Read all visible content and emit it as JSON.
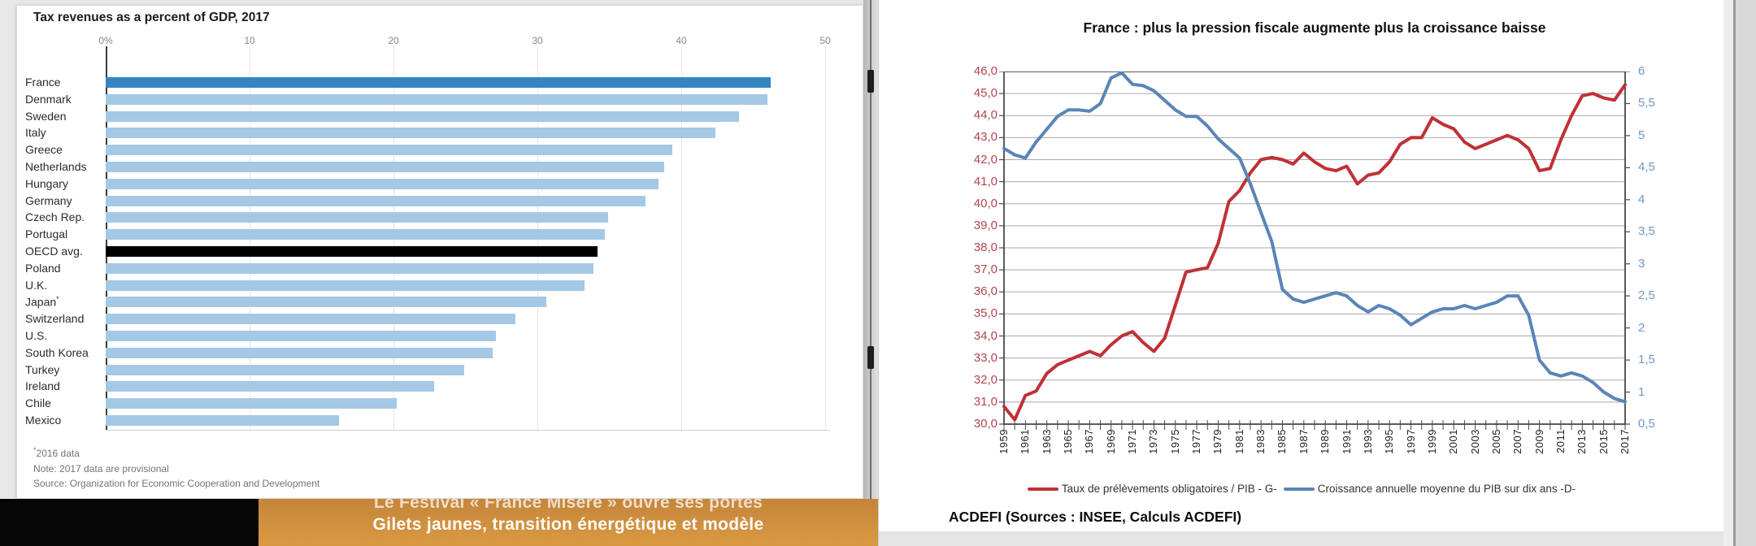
{
  "banner": {
    "line1": "Le Festival « France Misère » ouvre ses portes",
    "line2": "Gilets jaunes, transition énergétique et modèle"
  },
  "chart_data": [
    {
      "type": "bar",
      "orientation": "horizontal",
      "title": "Tax revenues as a percent of GDP, 2017",
      "x_ticks": [
        "0%",
        "10",
        "20",
        "30",
        "40",
        "50"
      ],
      "xlim": [
        0,
        50
      ],
      "grid": "vertical",
      "categories": [
        "France",
        "Denmark",
        "Sweden",
        "Italy",
        "Greece",
        "Netherlands",
        "Hungary",
        "Germany",
        "Czech Rep.",
        "Portugal",
        "OECD avg.",
        "Poland",
        "U.K.",
        "Japan*",
        "Switzerland",
        "U.S.",
        "South Korea",
        "Turkey",
        "Ireland",
        "Chile",
        "Mexico"
      ],
      "values": [
        46.2,
        46.0,
        44.0,
        42.4,
        39.4,
        38.8,
        38.4,
        37.5,
        34.9,
        34.7,
        34.2,
        33.9,
        33.3,
        30.6,
        28.5,
        27.1,
        26.9,
        24.9,
        22.8,
        20.2,
        16.2
      ],
      "bar_styles": [
        "highlight",
        "normal",
        "normal",
        "normal",
        "normal",
        "normal",
        "normal",
        "normal",
        "normal",
        "normal",
        "black",
        "normal",
        "normal",
        "normal",
        "normal",
        "normal",
        "normal",
        "normal",
        "normal",
        "normal",
        "normal"
      ],
      "colors": {
        "normal": "#a5c8e5",
        "highlight": "#3585c0",
        "black": "#000000"
      },
      "footnote_marker": "*",
      "footnote_text": "2016 data",
      "note": "Note: 2017 data are provisional",
      "source": "Source: Organization for Economic Cooperation and Development"
    },
    {
      "type": "line",
      "title": "France : plus la pression fiscale augmente plus la croissance baisse",
      "x_start": 1959,
      "x_end": 2017,
      "x_tick_labels": [
        "1959",
        "1961",
        "1963",
        "1965",
        "1967",
        "1969",
        "1971",
        "1973",
        "1975",
        "1977",
        "1979",
        "1981",
        "1983",
        "1985",
        "1987",
        "1989",
        "1991",
        "1993",
        "1995",
        "1997",
        "1999",
        "2001",
        "2003",
        "2005",
        "2007",
        "2009",
        "2011",
        "2013",
        "2015",
        "2017"
      ],
      "left_axis": {
        "min": 30,
        "max": 46,
        "step": 1,
        "labels": [
          "46,0",
          "45,0",
          "44,0",
          "43,0",
          "42,0",
          "41,0",
          "40,0",
          "39,0",
          "38,0",
          "37,0",
          "36,0",
          "35,0",
          "34,0",
          "33,0",
          "32,0",
          "31,0",
          "30,0"
        ],
        "color": "#b2454e"
      },
      "right_axis": {
        "min": 0.5,
        "max": 6,
        "step": 0.5,
        "labels": [
          "6",
          "5,5",
          "5",
          "4,5",
          "4",
          "3,5",
          "3",
          "2,5",
          "2",
          "1,5",
          "1",
          "0,5"
        ],
        "color": "#6d99c4"
      },
      "grid": "horizontal",
      "legend_position": "bottom",
      "series": [
        {
          "name": "Taux de prélèvements obligatoires / PIB - G-",
          "axis": "left",
          "color": "#bf3136",
          "values": [
            30.8,
            30.2,
            31.3,
            31.5,
            32.3,
            32.7,
            32.9,
            33.1,
            33.3,
            33.1,
            33.6,
            34.0,
            34.2,
            33.7,
            33.3,
            33.9,
            35.4,
            36.9,
            37.0,
            37.1,
            38.2,
            40.1,
            40.6,
            41.4,
            42.0,
            42.1,
            42.0,
            41.8,
            42.3,
            41.9,
            41.6,
            41.5,
            41.7,
            40.9,
            41.3,
            41.4,
            41.9,
            42.7,
            43.0,
            43.0,
            43.9,
            43.6,
            43.4,
            42.8,
            42.5,
            42.7,
            42.9,
            43.1,
            42.9,
            42.5,
            41.5,
            41.6,
            42.9,
            44.0,
            44.9,
            45.0,
            44.8,
            44.7,
            45.4
          ]
        },
        {
          "name": "Croissance annuelle moyenne du PIB sur dix ans -D-",
          "axis": "right",
          "color": "#5a85b6",
          "values": [
            4.8,
            4.7,
            4.65,
            4.9,
            5.1,
            5.3,
            5.4,
            5.4,
            5.38,
            5.5,
            5.9,
            5.98,
            5.8,
            5.78,
            5.7,
            5.55,
            5.4,
            5.3,
            5.3,
            5.15,
            4.95,
            4.8,
            4.65,
            4.25,
            3.8,
            3.35,
            2.6,
            2.45,
            2.4,
            2.45,
            2.5,
            2.55,
            2.5,
            2.35,
            2.25,
            2.35,
            2.3,
            2.2,
            2.05,
            2.15,
            2.25,
            2.3,
            2.3,
            2.35,
            2.3,
            2.35,
            2.4,
            2.5,
            2.5,
            2.2,
            1.5,
            1.3,
            1.25,
            1.3,
            1.25,
            1.15,
            1.0,
            0.9,
            0.85
          ]
        }
      ],
      "source_line": "ACDEFI (Sources : INSEE, Calculs ACDEFI)"
    }
  ]
}
